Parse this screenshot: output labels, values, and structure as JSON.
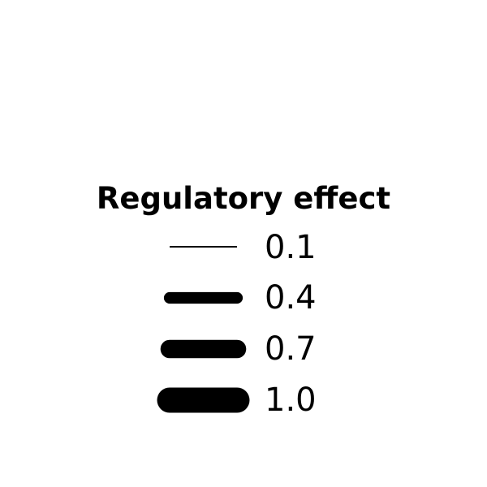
{
  "legend": {
    "title": "Regulatory effect",
    "line_color": "#000000",
    "entries": [
      {
        "label": "0.1",
        "value": 0.1
      },
      {
        "label": "0.4",
        "value": 0.4
      },
      {
        "label": "0.7",
        "value": 0.7
      },
      {
        "label": "1.0",
        "value": 1.0
      }
    ]
  }
}
